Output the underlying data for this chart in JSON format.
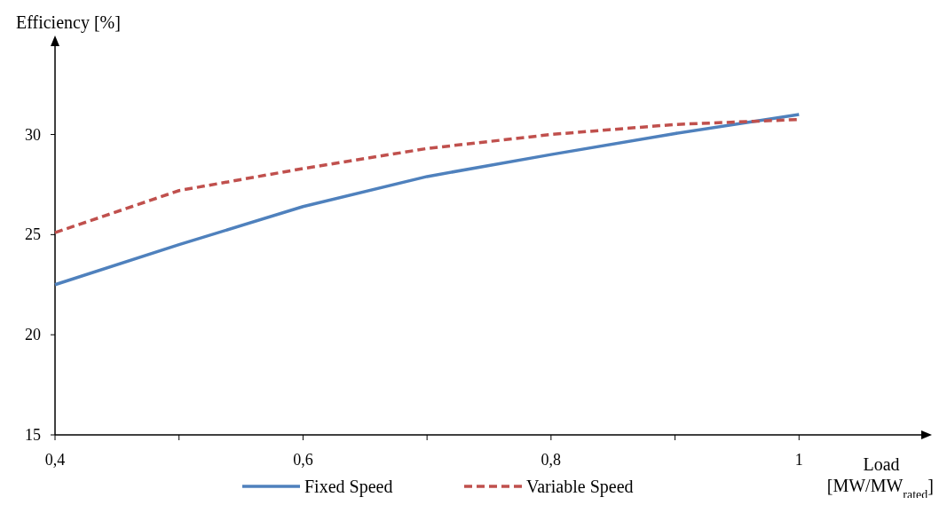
{
  "chart_data": {
    "type": "line",
    "xlabel": "Load [MW/MW$_{rated}$]",
    "ylabel": "Efficiency [%]",
    "x": [
      0.4,
      0.5,
      0.6,
      0.7,
      0.8,
      0.9,
      1.0
    ],
    "xlim": [
      0.4,
      1.1
    ],
    "ylim": [
      15,
      34.5
    ],
    "xticks": [
      {
        "value": 0.4,
        "label": "0,4"
      },
      {
        "value": 0.5,
        "label": null
      },
      {
        "value": 0.6,
        "label": "0,6"
      },
      {
        "value": 0.7,
        "label": null
      },
      {
        "value": 0.8,
        "label": "0,8"
      },
      {
        "value": 0.9,
        "label": null
      },
      {
        "value": 1,
        "label": "1"
      }
    ],
    "yticks": [
      15,
      20,
      25,
      30
    ],
    "series": [
      {
        "name": "Fixed Speed",
        "color": "#4f81bd",
        "line_style": "solid",
        "values": [
          22.5,
          24.5,
          26.4,
          27.9,
          29.0,
          30.05,
          31.0
        ]
      },
      {
        "name": "Variable Speed",
        "color": "#c0504d",
        "line_style": "dashed",
        "values": [
          25.1,
          27.2,
          28.3,
          29.3,
          30.0,
          30.5,
          30.75
        ]
      }
    ],
    "grid": false,
    "legend": "bottom"
  }
}
